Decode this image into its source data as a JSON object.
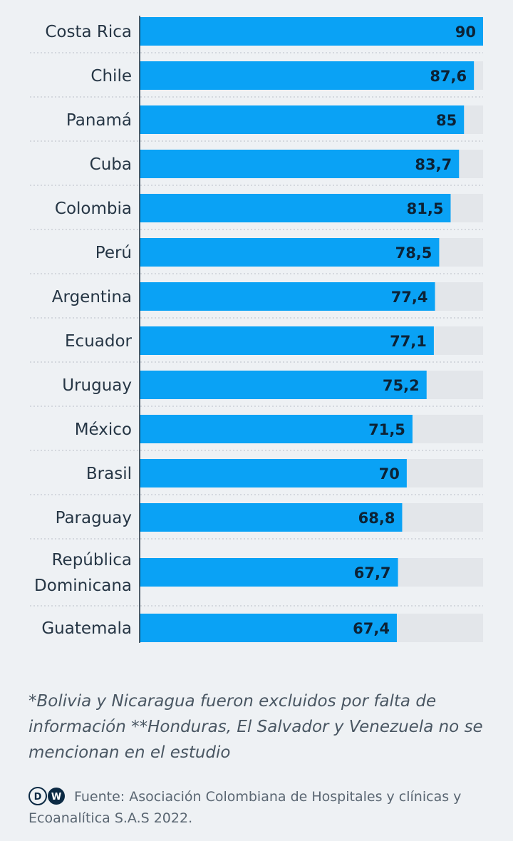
{
  "chart_data": {
    "type": "bar",
    "orientation": "horizontal",
    "categories": [
      "Costa Rica",
      "Chile",
      "Panamá",
      "Cuba",
      "Colombia",
      "Perú",
      "Argentina",
      "Ecuador",
      "Uruguay",
      "México",
      "Brasil",
      "Paraguay",
      "República Dominicana",
      "Guatemala"
    ],
    "values": [
      90,
      87.6,
      85,
      83.7,
      81.5,
      78.5,
      77.4,
      77.1,
      75.2,
      71.5,
      70,
      68.8,
      67.7,
      67.4
    ],
    "value_labels": [
      "90",
      "87,6",
      "85",
      "83,7",
      "81,5",
      "78,5",
      "77,4",
      "77,1",
      "75,2",
      "71,5",
      "70",
      "68,8",
      "67,7",
      "67,4"
    ],
    "xlim": [
      0,
      90
    ],
    "grid": false,
    "bar_color": "#0aa2f5",
    "track_color": "#e3e6ea"
  },
  "footnote": "*Bolivia y Nicaragua fueron excluidos por falta de información **Honduras, El Salvador y Venezuela no se mencionan en el estudio",
  "source": {
    "logo_text": "DW",
    "text": "Fuente: Asociación Colombiana de Hospitales y clínicas y Ecoanalítica S.A.S 2022."
  }
}
